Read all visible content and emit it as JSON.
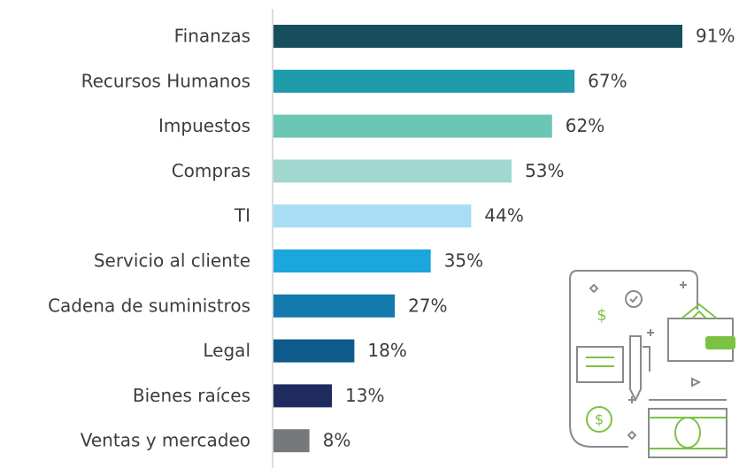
{
  "chart_data": {
    "type": "bar",
    "orientation": "horizontal",
    "categories": [
      "Finanzas",
      "Recursos Humanos",
      "Impuestos",
      "Compras",
      "TI",
      "Servicio al cliente",
      "Cadena de suministros",
      "Legal",
      "Bienes raíces",
      "Ventas y mercadeo"
    ],
    "values": [
      91,
      67,
      62,
      53,
      44,
      35,
      27,
      18,
      13,
      8
    ],
    "value_labels": [
      "91%",
      "67%",
      "62%",
      "53%",
      "44%",
      "35%",
      "27%",
      "18%",
      "13%",
      "8%"
    ],
    "colors": [
      "#174f5e",
      "#1f9ba9",
      "#6cc6b5",
      "#a0d7cf",
      "#a8ddf6",
      "#1ba6de",
      "#1479ad",
      "#0e5a8a",
      "#1f2b5e",
      "#76787c"
    ]
  }
}
